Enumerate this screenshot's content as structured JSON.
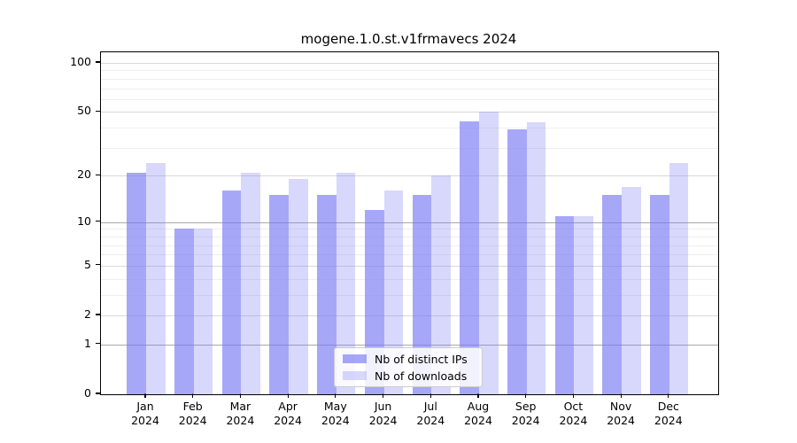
{
  "chart_data": {
    "type": "bar",
    "title": "mogene.1.0.st.v1frmavecs 2024",
    "categories": [
      "Jan",
      "Feb",
      "Mar",
      "Apr",
      "May",
      "Jun",
      "Jul",
      "Aug",
      "Sep",
      "Oct",
      "Nov",
      "Dec"
    ],
    "year": "2024",
    "series": [
      {
        "name": "Nb of distinct IPs",
        "color": "rgba(120,120,245,0.65)",
        "values": [
          21,
          9,
          16,
          15,
          15,
          12,
          15,
          44,
          39,
          11,
          15,
          15
        ]
      },
      {
        "name": "Nb of downloads",
        "color": "rgba(120,120,245,0.29)",
        "values": [
          24,
          9,
          21,
          19,
          21,
          16,
          20,
          50,
          43,
          11,
          17,
          24
        ]
      }
    ],
    "xlabel": "",
    "ylabel": "",
    "yscale": "log1p",
    "ylim": [
      0,
      100
    ],
    "y_major_ticks": [
      0,
      1,
      2,
      5,
      10,
      20,
      50,
      100
    ],
    "y_minor_ticks": [
      3,
      4,
      6,
      7,
      8,
      9,
      30,
      40,
      60,
      70,
      80,
      90
    ],
    "y_decade_ticks": [
      1,
      10
    ],
    "grid": true,
    "legend_position": "lower center inside",
    "background_color": "#ffffff",
    "axis_color": "#000000"
  }
}
